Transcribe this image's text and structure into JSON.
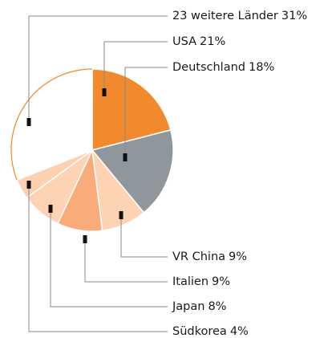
{
  "chart_data": {
    "type": "pie",
    "categories": [
      "USA",
      "Deutschland",
      "VR China",
      "Italien",
      "Japan",
      "Südkorea",
      "23 weitere Länder"
    ],
    "values": [
      21,
      18,
      9,
      9,
      8,
      4,
      31
    ],
    "value_labels": [
      "21%",
      "18%",
      "9%",
      "9%",
      "8%",
      "4%",
      "31%"
    ],
    "colors": [
      "#f08a2c",
      "#8f979c",
      "#fdd3b4",
      "#f9ac7a",
      "#fdd3b4",
      "#fcd0b0",
      "#ffffff"
    ],
    "outline_color": "#f08a2c"
  }
}
